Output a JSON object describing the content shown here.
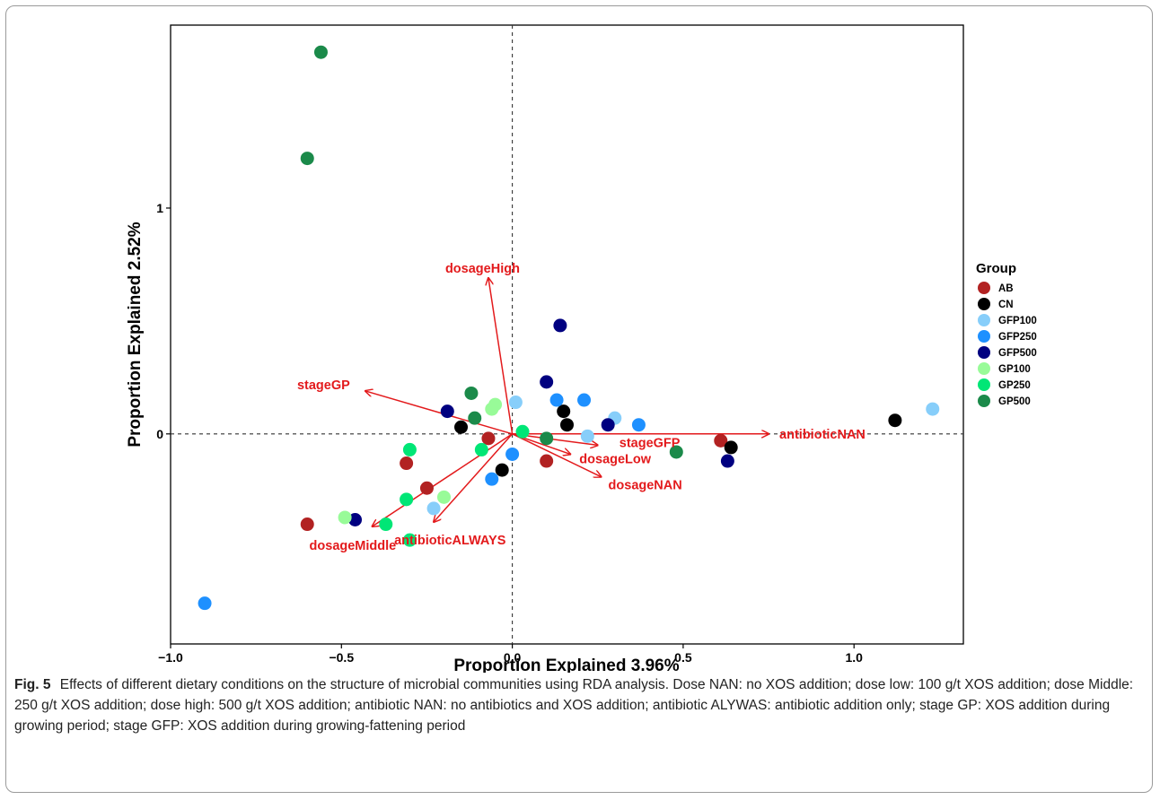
{
  "figure_label": "Fig. 5",
  "caption_text": "Effects of different dietary conditions on the structure of microbial communities using RDA analysis. Dose NAN: no XOS addition; dose low: 100 g/t XOS addition; dose Middle: 250 g/t XOS addition; dose high: 500 g/t XOS addition; antibiotic NAN: no antibiotics and XOS addition; antibiotic ALYWAS: antibiotic addition only; stage GP: XOS addition during growing period; stage GFP: XOS addition during growing-fattening period",
  "chart_data": {
    "type": "scatter",
    "xlabel": "Proportion Explained 3.96%",
    "ylabel": "Proportion Explained 2.52%",
    "xlim": [
      -1.0,
      1.32
    ],
    "ylim": [
      -0.93,
      1.81
    ],
    "x_ticks": [
      -1.0,
      -0.5,
      0.0,
      0.5,
      1.0
    ],
    "x_tick_labels": [
      "−1.0",
      "−0.5",
      "0.0",
      "0.5",
      "1.0"
    ],
    "y_ticks": [
      0,
      1
    ],
    "y_tick_labels": [
      "0",
      "1"
    ],
    "reference_lines": {
      "x": 0,
      "y": 0,
      "style": "dashed"
    },
    "grid": false,
    "legend": {
      "title": "Group",
      "placement": "right"
    },
    "arrow_color": "#e31a1c",
    "series": [
      {
        "name": "AB",
        "color": "#b22222",
        "points": [
          [
            -0.07,
            -0.02
          ],
          [
            -0.31,
            -0.13
          ],
          [
            -0.25,
            -0.24
          ],
          [
            -0.6,
            -0.4
          ],
          [
            0.1,
            -0.12
          ],
          [
            0.61,
            -0.03
          ]
        ]
      },
      {
        "name": "CN",
        "color": "#000000",
        "points": [
          [
            -0.15,
            0.03
          ],
          [
            0.15,
            0.1
          ],
          [
            0.16,
            0.04
          ],
          [
            -0.03,
            -0.16
          ],
          [
            0.64,
            -0.06
          ],
          [
            1.12,
            0.06
          ]
        ]
      },
      {
        "name": "GFP100",
        "color": "#87cefa",
        "points": [
          [
            0.01,
            0.14
          ],
          [
            0.3,
            0.07
          ],
          [
            0.22,
            -0.01
          ],
          [
            -0.23,
            -0.33
          ],
          [
            1.23,
            0.11
          ]
        ]
      },
      {
        "name": "GFP250",
        "color": "#1e90ff",
        "points": [
          [
            0.13,
            0.15
          ],
          [
            0.21,
            0.15
          ],
          [
            0.37,
            0.04
          ],
          [
            0.0,
            -0.09
          ],
          [
            -0.06,
            -0.2
          ],
          [
            -0.9,
            -0.75
          ]
        ]
      },
      {
        "name": "GFP500",
        "color": "#000080",
        "points": [
          [
            0.14,
            0.48
          ],
          [
            0.1,
            0.23
          ],
          [
            -0.19,
            0.1
          ],
          [
            0.28,
            0.04
          ],
          [
            0.63,
            -0.12
          ],
          [
            -0.46,
            -0.38
          ]
        ]
      },
      {
        "name": "GP100",
        "color": "#98fb98",
        "points": [
          [
            -0.06,
            0.11
          ],
          [
            -0.05,
            0.13
          ],
          [
            -0.2,
            -0.28
          ],
          [
            -0.49,
            -0.37
          ]
        ]
      },
      {
        "name": "GP250",
        "color": "#00e676",
        "points": [
          [
            0.03,
            0.01
          ],
          [
            -0.09,
            -0.07
          ],
          [
            -0.3,
            -0.07
          ],
          [
            -0.31,
            -0.29
          ],
          [
            -0.37,
            -0.4
          ],
          [
            -0.3,
            -0.47
          ]
        ]
      },
      {
        "name": "GP500",
        "color": "#1b8a4a",
        "points": [
          [
            -0.56,
            1.69
          ],
          [
            -0.6,
            1.22
          ],
          [
            -0.12,
            0.18
          ],
          [
            -0.11,
            0.07
          ],
          [
            0.1,
            -0.02
          ],
          [
            0.48,
            -0.08
          ]
        ]
      }
    ],
    "arrows": [
      {
        "label": "dosageHigh",
        "x": -0.07,
        "y": 0.69
      },
      {
        "label": "stageGP",
        "x": -0.43,
        "y": 0.19
      },
      {
        "label": "antibioticNAN",
        "x": 0.75,
        "y": 0.0
      },
      {
        "label": "stageGFP",
        "x": 0.25,
        "y": -0.05
      },
      {
        "label": "dosageLow",
        "x": 0.17,
        "y": -0.09
      },
      {
        "label": "dosageNAN",
        "x": 0.26,
        "y": -0.19
      },
      {
        "label": "dosageMiddle",
        "x": -0.41,
        "y": -0.41
      },
      {
        "label": "antibioticALWAYS",
        "x": -0.23,
        "y": -0.39
      }
    ]
  }
}
